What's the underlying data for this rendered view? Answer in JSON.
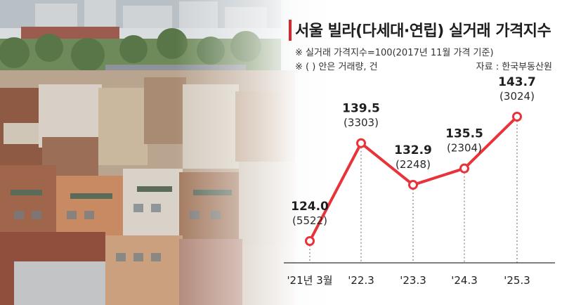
{
  "header": {
    "title": "서울 빌라(다세대·연립) 실거래 가격지수",
    "note_index": "※ 실거래 가격지수=100(2017년 11월 가격 기준)",
    "note_paren": "※ ( ) 안은 거래량, 건",
    "source": "자료 : 한국부동산원"
  },
  "colors": {
    "accent": "#d8262e",
    "line": "#e8333a",
    "marker_fill": "#ffffff"
  },
  "chart_data": {
    "type": "line",
    "title": "서울 빌라(다세대·연립) 실거래 가격지수",
    "categories": [
      "'21년 3월",
      "'22.3",
      "'23.3",
      "'24.3",
      "'25.3"
    ],
    "series": [
      {
        "values": [
          124.0,
          139.5,
          132.9,
          135.5,
          143.7
        ],
        "labels": [
          "124.0",
          "139.5",
          "132.9",
          "135.5",
          "143.7"
        ],
        "volume": [
          5522,
          3303,
          2248,
          2304,
          3024
        ],
        "volume_labels": [
          "(5522)",
          "(3303)",
          "(2248)",
          "(2304)",
          "(3024)"
        ]
      }
    ],
    "grid": false,
    "legend": "none"
  }
}
